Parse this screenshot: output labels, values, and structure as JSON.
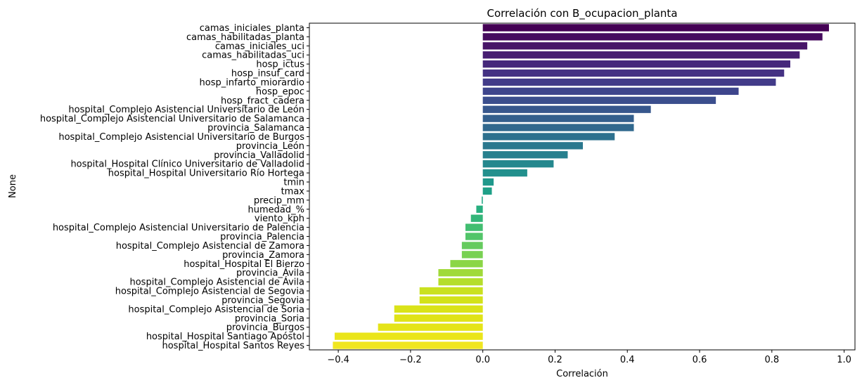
{
  "chart_data": {
    "type": "bar",
    "orientation": "horizontal",
    "title": "Correlación con B_ocupacion_planta",
    "xlabel": "Correlación",
    "ylabel": "None",
    "xlim": [
      -0.48,
      1.03
    ],
    "xticks": [
      -0.4,
      -0.2,
      0.0,
      0.2,
      0.4,
      0.6,
      0.8,
      1.0
    ],
    "xtick_labels": [
      "−0.4",
      "−0.2",
      "0.0",
      "0.2",
      "0.4",
      "0.6",
      "0.8",
      "1.0"
    ],
    "grid": false,
    "colormap": "viridis",
    "categories": [
      "camas_iniciales_planta",
      "camas_habilitadas_planta",
      "camas_iniciales_uci",
      "camas_habilitadas_uci",
      "hosp_ictus",
      "hosp_insuf_card",
      "hosp_infarto_miorardio",
      "hosp_epoc",
      "hosp_fract_cadera",
      "hospital_Complejo Asistencial Universitario de León",
      "hospital_Complejo Asistencial Universitario de Salamanca",
      "provincia_Salamanca",
      "hospital_Complejo Asistencial Universitario de Burgos",
      "provincia_León",
      "provincia_Valladolid",
      "hospital_Hospital Clínico Universitario de Valladolid",
      "hospital_Hospital Universitario Río Hortega",
      "tmin",
      "tmax",
      "precip_mm",
      "humedad_%",
      "viento_kph",
      "hospital_Complejo Asistencial Universitario de Palencia",
      "provincia_Palencia",
      "hospital_Complejo Asistencial de Zamora",
      "provincia_Zamora",
      "hospital_Hospital El Bierzo",
      "provincia_Ávila",
      "hospital_Complejo Asistencial de Ávila",
      "hospital_Complejo Asistencial de Segovia",
      "provincia_Segovia",
      "hospital_Complejo Asistencial de Soria",
      "provincia_Soria",
      "provincia_Burgos",
      "hospital_Hospital Santiago Apóstol",
      "hospital_Hospital Santos Reyes"
    ],
    "values": [
      0.958,
      0.94,
      0.898,
      0.877,
      0.851,
      0.834,
      0.811,
      0.708,
      0.645,
      0.465,
      0.418,
      0.418,
      0.365,
      0.277,
      0.235,
      0.196,
      0.123,
      0.03,
      0.025,
      -0.003,
      -0.018,
      -0.033,
      -0.048,
      -0.048,
      -0.058,
      -0.058,
      -0.09,
      -0.123,
      -0.123,
      -0.175,
      -0.175,
      -0.245,
      -0.245,
      -0.29,
      -0.41,
      -0.415
    ],
    "colors": [
      "#440154",
      "#460b5e",
      "#471568",
      "#471e72",
      "#46287b",
      "#443183",
      "#423b89",
      "#3e458c",
      "#3b4e8d",
      "#37578d",
      "#335f8d",
      "#30688e",
      "#2d708e",
      "#2a788e",
      "#27808e",
      "#25888e",
      "#22908d",
      "#1f988b",
      "#1fa088",
      "#21a785",
      "#28af7f",
      "#34b679",
      "#42be71",
      "#52c569",
      "#65cb5e",
      "#78d152",
      "#8bd646",
      "#a0da39",
      "#b5de2b",
      "#cae11f",
      "#d3e21a",
      "#dae319",
      "#e0e318",
      "#e5e418",
      "#eae51a",
      "#f0e620"
    ]
  }
}
